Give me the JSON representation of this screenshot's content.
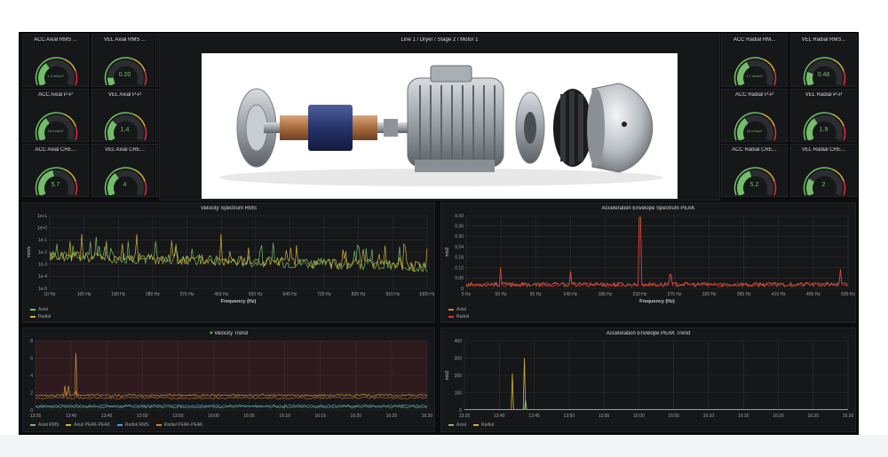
{
  "dashboard": {
    "title": "Line 1 / Dryer / Stage 2 / Motor 1"
  },
  "colors": {
    "green": "#73bf69",
    "yellow": "#d5b03a",
    "orange": "#e5772e",
    "red": "#e02f44",
    "blue": "#5794f2",
    "gauge_track": "#2b2d31"
  },
  "gauges_left": [
    {
      "title": "ACC Axial RMS ...",
      "value": "1.4 m/sec²",
      "level": 0.35,
      "color": "#73bf69",
      "small": true
    },
    {
      "title": "VEL Axial RMS ...",
      "value": "0.20",
      "level": 0.12,
      "color": "#73bf69",
      "small": false
    },
    {
      "title": "ACC Axial P-P",
      "value": "15 m/sec²",
      "level": 0.35,
      "color": "#73bf69",
      "small": true
    },
    {
      "title": "VEL Axial P-P",
      "value": "1.4",
      "level": 0.3,
      "color": "#73bf69",
      "small": false
    },
    {
      "title": "ACC Axial CRE...",
      "value": "5.7",
      "level": 0.45,
      "color": "#73bf69",
      "small": false
    },
    {
      "title": "VEL Axial CRE...",
      "value": "4",
      "level": 0.35,
      "color": "#73bf69",
      "small": false
    }
  ],
  "gauges_right": [
    {
      "title": "ACC Radial RM...",
      "value": "1.7 m/sec²",
      "level": 0.38,
      "color": "#73bf69",
      "small": true
    },
    {
      "title": "VEL Radial RMS...",
      "value": "0.48",
      "level": 0.2,
      "color": "#73bf69",
      "small": false
    },
    {
      "title": "ACC Radial P-P",
      "value": "15 m/sec²",
      "level": 0.35,
      "color": "#73bf69",
      "small": true
    },
    {
      "title": "VEL Radial P-P",
      "value": "1.9",
      "level": 0.35,
      "color": "#73bf69",
      "small": false
    },
    {
      "title": "ACC Radial CRE...",
      "value": "5.2",
      "level": 0.42,
      "color": "#73bf69",
      "small": false
    },
    {
      "title": "VEL Radial CRE...",
      "value": "2",
      "level": 0.25,
      "color": "#73bf69",
      "small": false
    }
  ],
  "chart_data": [
    {
      "type": "line",
      "title": "Velocity Spectrum RMS",
      "xlabel": "Frequency (Hz)",
      "ylabel": "mm/s",
      "y_scale": "log",
      "x_ticks": [
        "10 Hz",
        "100 Hz",
        "190 Hz",
        "280 Hz",
        "370 Hz",
        "460 Hz",
        "550 Hz",
        "640 Hz",
        "730 Hz",
        "820 Hz",
        "910 Hz",
        "1000 Hz"
      ],
      "y_ticks": [
        "1e+1",
        "1e+0",
        "1e-1",
        "1e-2",
        "1e-3",
        "1e-4",
        "1e-5"
      ],
      "xlim": [
        10,
        1000
      ],
      "ylim_exp": [
        -5,
        1
      ],
      "series": [
        {
          "name": "Axial",
          "color": "#73bf69"
        },
        {
          "name": "Radial",
          "color": "#d5b03a"
        }
      ],
      "legend": "bottom-left"
    },
    {
      "type": "line",
      "title": "Acceleration Envelope Spectrum PEAK",
      "xlabel": "Frequency (Hz)",
      "ylabel": "m/s2",
      "x_ticks": [
        "5 Hz",
        "50 Hz",
        "95 Hz",
        "140 Hz",
        "185 Hz",
        "230 Hz",
        "275 Hz",
        "320 Hz",
        "365 Hz",
        "410 Hz",
        "455 Hz",
        "500 Hz"
      ],
      "y_ticks": [
        "0.42",
        "0.36",
        "0.30",
        "0.24",
        "0.18",
        "0.12",
        "0.06",
        "0"
      ],
      "xlim": [
        5,
        500
      ],
      "ylim": [
        0,
        0.42
      ],
      "peaks": [
        [
          50,
          0.12
        ],
        [
          140,
          0.1
        ],
        [
          230,
          0.41
        ],
        [
          270,
          0.08
        ],
        [
          490,
          0.11
        ]
      ],
      "series": [
        {
          "name": "Axial",
          "color": "#e5772e"
        },
        {
          "name": "Radial",
          "color": "#e02f44"
        }
      ],
      "legend": "bottom-left"
    },
    {
      "type": "line",
      "title": "Velocity Trend",
      "x_ticks": [
        "13:35",
        "13:40",
        "13:45",
        "13:50",
        "13:55",
        "16:00",
        "16:05",
        "16:10",
        "16:15",
        "16:20",
        "16:25",
        "16:30"
      ],
      "y_ticks": [
        "8",
        "6",
        "4",
        "2",
        "0"
      ],
      "ylim": [
        0,
        8
      ],
      "series": [
        {
          "name": "Axial RMS",
          "color": "#73bf69"
        },
        {
          "name": "Axial PEAK-PEAK",
          "color": "#d5b03a"
        },
        {
          "name": "Radial RMS",
          "color": "#5794f2"
        },
        {
          "name": "Radial PEAK-PEAK",
          "color": "#e5772e"
        }
      ],
      "legend": "bottom"
    },
    {
      "type": "line",
      "title": "Acceleration Envelope PEAK Trend",
      "ylabel": "m/s2",
      "x_ticks": [
        "13:35",
        "13:40",
        "13:45",
        "13:50",
        "13:55",
        "16:00",
        "16:05",
        "16:10",
        "16:15",
        "16:20",
        "16:25",
        "16:30"
      ],
      "y_ticks": [
        "400",
        "300",
        "200",
        "100",
        "0"
      ],
      "ylim": [
        0,
        400
      ],
      "series": [
        {
          "name": "Axial",
          "color": "#73bf69"
        },
        {
          "name": "Radial",
          "color": "#d5b03a"
        }
      ],
      "legend": "bottom"
    }
  ]
}
